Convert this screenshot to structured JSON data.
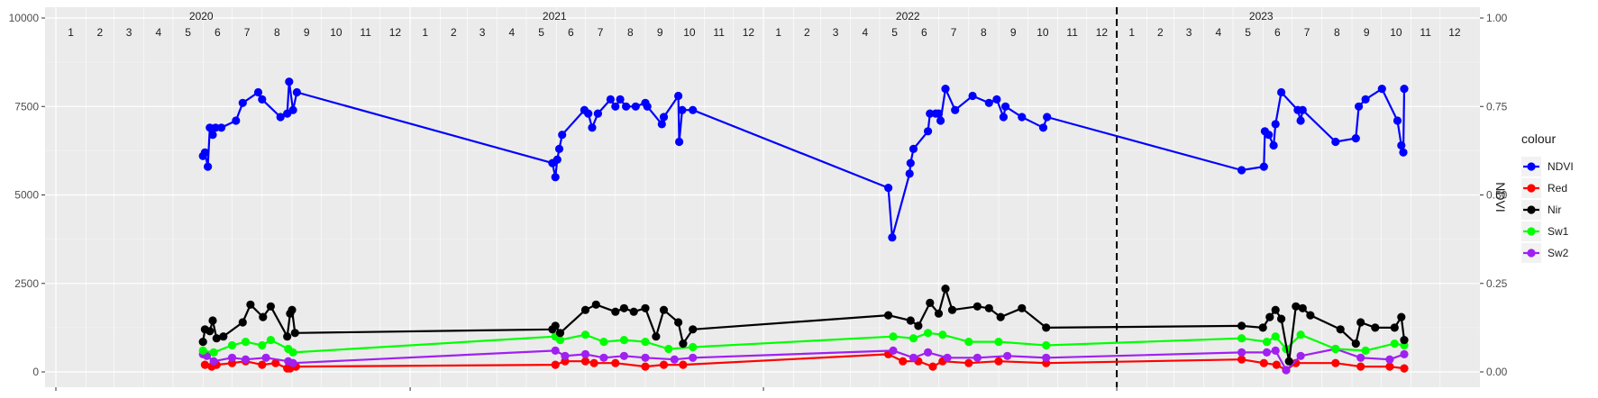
{
  "chart_data": {
    "type": "line",
    "x_type": "date",
    "ylim_left": [
      0,
      10000
    ],
    "left_ticks": [
      0,
      2500,
      5000,
      7500,
      10000
    ],
    "left_tick_labels": [
      "0",
      "2500",
      "5000",
      "7500",
      "10000"
    ],
    "ylim_right": [
      0,
      1
    ],
    "right_ticks": [
      0,
      0.25,
      0.5,
      0.75,
      1
    ],
    "right_tick_labels": [
      "0.00",
      "0.25",
      "0.50",
      "0.75",
      "1.00"
    ],
    "ylabel_right": "NDVI",
    "xlim": [
      "2020-01-01",
      "2023-12-31"
    ],
    "years": [
      "2020",
      "2021",
      "2022",
      "2023"
    ],
    "month_labels": [
      "1",
      "2",
      "3",
      "4",
      "5",
      "6",
      "7",
      "8",
      "9",
      "10",
      "11",
      "12"
    ],
    "vline_date": "2023-01-01",
    "grid": true,
    "legend": {
      "title": "colour",
      "position": "right"
    },
    "series": [
      {
        "name": "NDVI",
        "axis": "right",
        "color": "#0000ff",
        "points": [
          [
            "2020-06-01",
            0.61
          ],
          [
            "2020-06-03",
            0.62
          ],
          [
            "2020-06-06",
            0.58
          ],
          [
            "2020-06-08",
            0.69
          ],
          [
            "2020-06-11",
            0.67
          ],
          [
            "2020-06-14",
            0.69
          ],
          [
            "2020-06-20",
            0.69
          ],
          [
            "2020-07-05",
            0.71
          ],
          [
            "2020-07-12",
            0.76
          ],
          [
            "2020-07-28",
            0.79
          ],
          [
            "2020-08-01",
            0.77
          ],
          [
            "2020-08-20",
            0.72
          ],
          [
            "2020-08-27",
            0.73
          ],
          [
            "2020-08-29",
            0.82
          ],
          [
            "2020-09-02",
            0.74
          ],
          [
            "2020-09-06",
            0.79
          ],
          [
            "2021-05-28",
            0.59
          ],
          [
            "2021-05-31",
            0.55
          ],
          [
            "2021-06-02",
            0.6
          ],
          [
            "2021-06-04",
            0.63
          ],
          [
            "2021-06-07",
            0.67
          ],
          [
            "2021-06-30",
            0.74
          ],
          [
            "2021-07-04",
            0.73
          ],
          [
            "2021-07-08",
            0.69
          ],
          [
            "2021-07-14",
            0.73
          ],
          [
            "2021-07-27",
            0.77
          ],
          [
            "2021-08-01",
            0.75
          ],
          [
            "2021-08-06",
            0.77
          ],
          [
            "2021-08-12",
            0.75
          ],
          [
            "2021-08-22",
            0.75
          ],
          [
            "2021-09-01",
            0.76
          ],
          [
            "2021-09-03",
            0.75
          ],
          [
            "2021-09-18",
            0.7
          ],
          [
            "2021-09-20",
            0.72
          ],
          [
            "2021-10-05",
            0.78
          ],
          [
            "2021-10-06",
            0.65
          ],
          [
            "2021-10-09",
            0.74
          ],
          [
            "2021-10-20",
            0.74
          ],
          [
            "2022-05-10",
            0.52
          ],
          [
            "2022-05-14",
            0.38
          ],
          [
            "2022-06-01",
            0.56
          ],
          [
            "2022-06-02",
            0.59
          ],
          [
            "2022-06-05",
            0.63
          ],
          [
            "2022-06-20",
            0.68
          ],
          [
            "2022-06-22",
            0.73
          ],
          [
            "2022-06-28",
            0.73
          ],
          [
            "2022-07-01",
            0.73
          ],
          [
            "2022-07-03",
            0.71
          ],
          [
            "2022-07-08",
            0.8
          ],
          [
            "2022-07-18",
            0.74
          ],
          [
            "2022-08-05",
            0.78
          ],
          [
            "2022-08-22",
            0.76
          ],
          [
            "2022-08-30",
            0.77
          ],
          [
            "2022-09-06",
            0.72
          ],
          [
            "2022-09-08",
            0.75
          ],
          [
            "2022-09-25",
            0.72
          ],
          [
            "2022-10-17",
            0.69
          ],
          [
            "2022-10-21",
            0.72
          ],
          [
            "2023-05-10",
            0.57
          ],
          [
            "2023-06-02",
            0.58
          ],
          [
            "2023-06-03",
            0.68
          ],
          [
            "2023-06-07",
            0.67
          ],
          [
            "2023-06-12",
            0.64
          ],
          [
            "2023-06-14",
            0.7
          ],
          [
            "2023-06-20",
            0.79
          ],
          [
            "2023-07-07",
            0.74
          ],
          [
            "2023-07-10",
            0.71
          ],
          [
            "2023-07-12",
            0.74
          ],
          [
            "2023-08-15",
            0.65
          ],
          [
            "2023-09-05",
            0.66
          ],
          [
            "2023-09-08",
            0.75
          ],
          [
            "2023-09-15",
            0.77
          ],
          [
            "2023-10-02",
            0.8
          ],
          [
            "2023-10-18",
            0.71
          ],
          [
            "2023-10-22",
            0.64
          ],
          [
            "2023-10-24",
            0.62
          ],
          [
            "2023-10-25",
            0.8
          ]
        ]
      },
      {
        "name": "Red",
        "axis": "left",
        "color": "#ff0000",
        "points": [
          [
            "2020-06-03",
            200
          ],
          [
            "2020-06-10",
            150
          ],
          [
            "2020-06-15",
            200
          ],
          [
            "2020-07-01",
            250
          ],
          [
            "2020-07-15",
            300
          ],
          [
            "2020-08-01",
            200
          ],
          [
            "2020-08-15",
            250
          ],
          [
            "2020-08-27",
            100
          ],
          [
            "2020-08-30",
            100
          ],
          [
            "2020-09-05",
            150
          ],
          [
            "2021-05-31",
            200
          ],
          [
            "2021-06-10",
            300
          ],
          [
            "2021-07-01",
            300
          ],
          [
            "2021-07-10",
            250
          ],
          [
            "2021-08-01",
            250
          ],
          [
            "2021-09-01",
            150
          ],
          [
            "2021-09-20",
            200
          ],
          [
            "2021-10-10",
            200
          ],
          [
            "2022-05-10",
            500
          ],
          [
            "2022-05-25",
            300
          ],
          [
            "2022-06-10",
            300
          ],
          [
            "2022-06-25",
            150
          ],
          [
            "2022-07-05",
            300
          ],
          [
            "2022-08-01",
            250
          ],
          [
            "2022-09-01",
            300
          ],
          [
            "2022-10-20",
            250
          ],
          [
            "2023-05-10",
            350
          ],
          [
            "2023-06-02",
            250
          ],
          [
            "2023-06-15",
            200
          ],
          [
            "2023-06-25",
            50
          ],
          [
            "2023-07-05",
            250
          ],
          [
            "2023-08-15",
            250
          ],
          [
            "2023-09-10",
            150
          ],
          [
            "2023-10-10",
            150
          ],
          [
            "2023-10-25",
            100
          ]
        ]
      },
      {
        "name": "Nir",
        "axis": "left",
        "color": "#000000",
        "points": [
          [
            "2020-06-01",
            850
          ],
          [
            "2020-06-03",
            1200
          ],
          [
            "2020-06-08",
            1150
          ],
          [
            "2020-06-11",
            1450
          ],
          [
            "2020-06-15",
            950
          ],
          [
            "2020-06-22",
            1000
          ],
          [
            "2020-07-12",
            1400
          ],
          [
            "2020-07-20",
            1900
          ],
          [
            "2020-08-02",
            1550
          ],
          [
            "2020-08-10",
            1850
          ],
          [
            "2020-08-27",
            1000
          ],
          [
            "2020-08-30",
            1650
          ],
          [
            "2020-09-01",
            1750
          ],
          [
            "2020-09-04",
            1100
          ],
          [
            "2021-05-28",
            1200
          ],
          [
            "2021-05-31",
            1300
          ],
          [
            "2021-06-05",
            1100
          ],
          [
            "2021-07-01",
            1750
          ],
          [
            "2021-07-12",
            1900
          ],
          [
            "2021-08-01",
            1700
          ],
          [
            "2021-08-10",
            1800
          ],
          [
            "2021-08-20",
            1700
          ],
          [
            "2021-09-01",
            1800
          ],
          [
            "2021-09-12",
            1000
          ],
          [
            "2021-09-20",
            1750
          ],
          [
            "2021-10-05",
            1400
          ],
          [
            "2021-10-10",
            800
          ],
          [
            "2021-10-20",
            1200
          ],
          [
            "2022-05-10",
            1600
          ],
          [
            "2022-06-02",
            1450
          ],
          [
            "2022-06-10",
            1300
          ],
          [
            "2022-06-22",
            1950
          ],
          [
            "2022-07-01",
            1650
          ],
          [
            "2022-07-08",
            2350
          ],
          [
            "2022-07-15",
            1750
          ],
          [
            "2022-08-10",
            1850
          ],
          [
            "2022-08-22",
            1800
          ],
          [
            "2022-09-03",
            1550
          ],
          [
            "2022-09-25",
            1800
          ],
          [
            "2022-10-20",
            1250
          ],
          [
            "2023-05-10",
            1300
          ],
          [
            "2023-06-01",
            1250
          ],
          [
            "2023-06-08",
            1550
          ],
          [
            "2023-06-14",
            1750
          ],
          [
            "2023-06-20",
            1500
          ],
          [
            "2023-06-28",
            300
          ],
          [
            "2023-07-05",
            1850
          ],
          [
            "2023-07-12",
            1800
          ],
          [
            "2023-07-20",
            1600
          ],
          [
            "2023-08-20",
            1200
          ],
          [
            "2023-09-05",
            800
          ],
          [
            "2023-09-10",
            1400
          ],
          [
            "2023-09-25",
            1250
          ],
          [
            "2023-10-15",
            1250
          ],
          [
            "2023-10-22",
            1550
          ],
          [
            "2023-10-25",
            900
          ]
        ]
      },
      {
        "name": "Sw1",
        "axis": "left",
        "color": "#00ff00",
        "points": [
          [
            "2020-06-01",
            600
          ],
          [
            "2020-06-12",
            550
          ],
          [
            "2020-07-01",
            750
          ],
          [
            "2020-07-15",
            850
          ],
          [
            "2020-08-01",
            750
          ],
          [
            "2020-08-10",
            900
          ],
          [
            "2020-08-28",
            650
          ],
          [
            "2020-09-02",
            550
          ],
          [
            "2021-05-31",
            1000
          ],
          [
            "2021-06-05",
            900
          ],
          [
            "2021-07-01",
            1050
          ],
          [
            "2021-07-20",
            850
          ],
          [
            "2021-08-10",
            900
          ],
          [
            "2021-09-01",
            850
          ],
          [
            "2021-09-25",
            650
          ],
          [
            "2021-10-20",
            700
          ],
          [
            "2022-05-15",
            1000
          ],
          [
            "2022-06-05",
            950
          ],
          [
            "2022-06-20",
            1100
          ],
          [
            "2022-07-05",
            1050
          ],
          [
            "2022-08-01",
            850
          ],
          [
            "2022-09-01",
            850
          ],
          [
            "2022-10-20",
            750
          ],
          [
            "2023-05-10",
            950
          ],
          [
            "2023-06-05",
            850
          ],
          [
            "2023-06-14",
            1000
          ],
          [
            "2023-06-25",
            650
          ],
          [
            "2023-07-10",
            1050
          ],
          [
            "2023-08-15",
            650
          ],
          [
            "2023-09-15",
            600
          ],
          [
            "2023-10-15",
            800
          ],
          [
            "2023-10-25",
            750
          ]
        ]
      },
      {
        "name": "Sw2",
        "axis": "left",
        "color": "#a020f0",
        "points": [
          [
            "2020-06-01",
            500
          ],
          [
            "2020-06-05",
            450
          ],
          [
            "2020-06-12",
            300
          ],
          [
            "2020-07-01",
            400
          ],
          [
            "2020-07-15",
            350
          ],
          [
            "2020-08-05",
            400
          ],
          [
            "2020-08-28",
            300
          ],
          [
            "2020-09-02",
            250
          ],
          [
            "2021-05-31",
            600
          ],
          [
            "2021-06-10",
            450
          ],
          [
            "2021-07-01",
            500
          ],
          [
            "2021-07-20",
            400
          ],
          [
            "2021-08-10",
            450
          ],
          [
            "2021-09-01",
            400
          ],
          [
            "2021-10-01",
            350
          ],
          [
            "2021-10-20",
            400
          ],
          [
            "2022-05-15",
            600
          ],
          [
            "2022-06-05",
            400
          ],
          [
            "2022-06-20",
            550
          ],
          [
            "2022-07-10",
            400
          ],
          [
            "2022-08-10",
            400
          ],
          [
            "2022-09-10",
            450
          ],
          [
            "2022-10-20",
            400
          ],
          [
            "2023-05-10",
            550
          ],
          [
            "2023-06-05",
            550
          ],
          [
            "2023-06-14",
            600
          ],
          [
            "2023-06-25",
            50
          ],
          [
            "2023-07-10",
            450
          ],
          [
            "2023-08-15",
            650
          ],
          [
            "2023-09-10",
            400
          ],
          [
            "2023-10-10",
            350
          ],
          [
            "2023-10-25",
            500
          ]
        ]
      }
    ]
  }
}
